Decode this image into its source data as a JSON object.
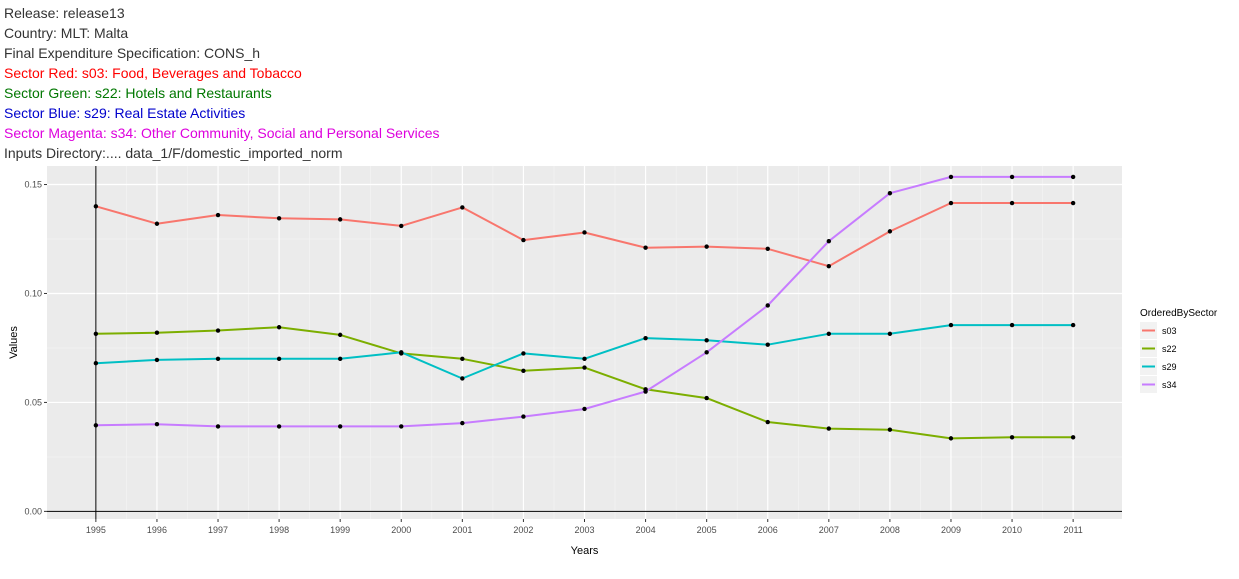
{
  "header": {
    "lines": [
      {
        "text": "Release: release13",
        "color": "#333333"
      },
      {
        "text": "Country: MLT: Malta",
        "color": "#333333"
      },
      {
        "text": "Final Expenditure Specification: CONS_h",
        "color": "#333333"
      },
      {
        "text": "Sector Red: s03: Food, Beverages and Tobacco",
        "color": "#ff0000"
      },
      {
        "text": "Sector Green: s22: Hotels and Restaurants",
        "color": "#007700"
      },
      {
        "text": "Sector Blue: s29: Real Estate Activities",
        "color": "#0000cc"
      },
      {
        "text": "Sector Magenta: s34: Other Community, Social and Personal Services",
        "color": "#dd00dd"
      },
      {
        "text": "Inputs Directory:.... data_1/F/domestic_imported_norm",
        "color": "#333333"
      }
    ]
  },
  "chart_data": {
    "type": "line",
    "title": "",
    "xlabel": "Years",
    "ylabel": "Values",
    "x": [
      1995,
      1996,
      1997,
      1998,
      1999,
      2000,
      2001,
      2002,
      2003,
      2004,
      2005,
      2006,
      2007,
      2008,
      2009,
      2010,
      2011
    ],
    "xlim": [
      1994.2,
      2011.8
    ],
    "ylim": [
      -0.0035,
      0.1585
    ],
    "yticks": [
      0.0,
      0.05,
      0.1,
      0.15
    ],
    "ytick_labels": [
      "0.00",
      "0.05",
      "0.10",
      "0.15"
    ],
    "vline_x": 1995,
    "hline_y": 0.0,
    "grid": true,
    "panel_background": "#ebebeb",
    "legend": {
      "title": "OrderedBySector",
      "position": "right"
    },
    "series": [
      {
        "name": "s03",
        "color": "#f8766d",
        "values": [
          0.14,
          0.132,
          0.136,
          0.1345,
          0.134,
          0.131,
          0.1395,
          0.1245,
          0.128,
          0.121,
          0.1215,
          0.1205,
          0.1125,
          0.1285,
          0.1415,
          0.1415,
          0.1415
        ]
      },
      {
        "name": "s22",
        "color": "#7cae00",
        "values": [
          0.0815,
          0.082,
          0.083,
          0.0845,
          0.081,
          0.0725,
          0.07,
          0.0645,
          0.066,
          0.056,
          0.052,
          0.041,
          0.038,
          0.0375,
          0.0335,
          0.034,
          0.034
        ]
      },
      {
        "name": "s29",
        "color": "#00bfc4",
        "values": [
          0.068,
          0.0695,
          0.07,
          0.07,
          0.07,
          0.073,
          0.061,
          0.0725,
          0.07,
          0.0795,
          0.0785,
          0.0765,
          0.0815,
          0.0815,
          0.0855,
          0.0855,
          0.0855
        ]
      },
      {
        "name": "s34",
        "color": "#c77cff",
        "values": [
          0.0395,
          0.04,
          0.039,
          0.039,
          0.039,
          0.039,
          0.0405,
          0.0435,
          0.047,
          0.055,
          0.073,
          0.0945,
          0.124,
          0.146,
          0.1535,
          0.1535,
          0.1535
        ]
      }
    ]
  }
}
